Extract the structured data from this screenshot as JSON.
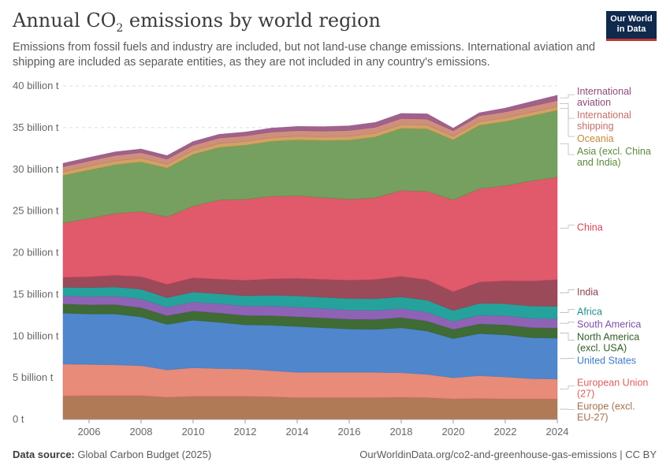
{
  "header": {
    "title_main": "Annual CO",
    "title_sub": "2",
    "title_rest": " emissions by world region",
    "subtitle": "Emissions from fossil fuels and industry are included, but not land-use change emissions. International aviation and shipping are included as separate entities, as they are not included in any country's emissions.",
    "logo_line1": "Our World",
    "logo_line2": "in Data"
  },
  "footer": {
    "source_label": "Data source:",
    "source_text": " Global Carbon Budget (2025)",
    "right_text": "OurWorldinData.org/co2-and-greenhouse-gas-emissions | CC BY"
  },
  "chart_data": {
    "type": "area",
    "stacked": true,
    "x": [
      2005,
      2006,
      2007,
      2008,
      2009,
      2010,
      2011,
      2012,
      2013,
      2014,
      2015,
      2016,
      2017,
      2018,
      2019,
      2020,
      2021,
      2022,
      2023,
      2024
    ],
    "xticks": [
      "2006",
      "2008",
      "2010",
      "2012",
      "2014",
      "2016",
      "2018",
      "2020",
      "2022",
      "2024"
    ],
    "xtick_values": [
      2006,
      2008,
      2010,
      2012,
      2014,
      2016,
      2018,
      2020,
      2022,
      2024
    ],
    "ylim": [
      0,
      40
    ],
    "yticks": [
      "0 t",
      "5 billion t",
      "10 billion t",
      "15 billion t",
      "20 billion t",
      "25 billion t",
      "30 billion t",
      "35 billion t",
      "40 billion t"
    ],
    "ytick_values": [
      0,
      5,
      10,
      15,
      20,
      25,
      30,
      35,
      40
    ],
    "grid": true,
    "legend": "right",
    "series": [
      {
        "name": "Europe (excl. EU-27)",
        "label_lines": [
          "Europe (excl.",
          "EU-27)"
        ],
        "color": "#a2704f",
        "fill": "#b07a57",
        "values": [
          2.8,
          2.85,
          2.85,
          2.85,
          2.65,
          2.75,
          2.75,
          2.75,
          2.7,
          2.6,
          2.6,
          2.6,
          2.6,
          2.65,
          2.6,
          2.45,
          2.5,
          2.45,
          2.45,
          2.45
        ]
      },
      {
        "name": "European Union (27)",
        "label_lines": [
          "European Union",
          "(27)"
        ],
        "color": "#d9605a",
        "fill": "#e88b78",
        "values": [
          3.85,
          3.75,
          3.7,
          3.6,
          3.3,
          3.45,
          3.35,
          3.3,
          3.15,
          3.05,
          3.05,
          3.05,
          3.05,
          2.95,
          2.8,
          2.55,
          2.75,
          2.65,
          2.45,
          2.4
        ]
      },
      {
        "name": "United States",
        "label_lines": [
          "United States"
        ],
        "color": "#3e7ac6",
        "fill": "#4f86cc",
        "values": [
          6.1,
          6.05,
          6.1,
          5.85,
          5.45,
          5.7,
          5.55,
          5.3,
          5.45,
          5.5,
          5.35,
          5.2,
          5.15,
          5.4,
          5.2,
          4.7,
          5.05,
          5.05,
          4.9,
          4.9
        ]
      },
      {
        "name": "North America (excl. USA)",
        "label_lines": [
          "North America",
          "(excl. USA)"
        ],
        "color": "#325d27",
        "fill": "#3f6b35",
        "values": [
          1.1,
          1.1,
          1.12,
          1.1,
          1.05,
          1.1,
          1.12,
          1.12,
          1.15,
          1.17,
          1.18,
          1.17,
          1.2,
          1.22,
          1.2,
          1.1,
          1.15,
          1.2,
          1.22,
          1.22
        ]
      },
      {
        "name": "South America",
        "label_lines": [
          "South America"
        ],
        "color": "#7e4fa8",
        "fill": "#8e63b6",
        "values": [
          0.95,
          0.98,
          1.0,
          1.05,
          1.0,
          1.08,
          1.1,
          1.12,
          1.15,
          1.15,
          1.12,
          1.1,
          1.08,
          1.07,
          1.05,
          0.95,
          1.05,
          1.08,
          1.1,
          1.1
        ]
      },
      {
        "name": "Africa",
        "label_lines": [
          "Africa"
        ],
        "color": "#1f8e8a",
        "fill": "#26a29c",
        "values": [
          1.05,
          1.08,
          1.12,
          1.18,
          1.15,
          1.2,
          1.2,
          1.25,
          1.3,
          1.35,
          1.35,
          1.38,
          1.4,
          1.42,
          1.45,
          1.32,
          1.42,
          1.45,
          1.48,
          1.5
        ]
      },
      {
        "name": "India",
        "label_lines": [
          "India"
        ],
        "color": "#8a3d4c",
        "fill": "#9b4a59",
        "values": [
          1.2,
          1.3,
          1.4,
          1.5,
          1.6,
          1.7,
          1.75,
          1.85,
          1.95,
          2.1,
          2.15,
          2.2,
          2.3,
          2.45,
          2.45,
          2.25,
          2.55,
          2.75,
          3.0,
          3.2
        ]
      },
      {
        "name": "China",
        "label_lines": [
          "China"
        ],
        "color": "#d64358",
        "fill": "#e05a6c",
        "values": [
          6.5,
          7.0,
          7.4,
          7.8,
          8.1,
          8.6,
          9.5,
          9.7,
          9.9,
          9.9,
          9.8,
          9.7,
          9.8,
          10.3,
          10.6,
          11.0,
          11.2,
          11.4,
          12.0,
          12.3
        ]
      },
      {
        "name": "Asia (excl. China and India)",
        "label_lines": [
          "Asia (excl. China",
          "and India)"
        ],
        "color": "#5b8a3a",
        "fill": "#76a05f",
        "values": [
          5.7,
          5.8,
          5.85,
          5.95,
          5.85,
          6.2,
          6.3,
          6.5,
          6.6,
          6.7,
          6.85,
          7.1,
          7.3,
          7.45,
          7.5,
          7.2,
          7.6,
          7.7,
          7.8,
          8.0
        ]
      },
      {
        "name": "Oceania",
        "label_lines": [
          "Oceania"
        ],
        "color": "#c08a36",
        "fill": "#d1a268",
        "values": [
          0.45,
          0.46,
          0.47,
          0.47,
          0.46,
          0.47,
          0.47,
          0.47,
          0.46,
          0.46,
          0.46,
          0.47,
          0.47,
          0.47,
          0.47,
          0.45,
          0.45,
          0.45,
          0.45,
          0.45
        ]
      },
      {
        "name": "International shipping",
        "label_lines": [
          "International",
          "shipping"
        ],
        "color": "#c0716a",
        "fill": "#cf8f7d",
        "values": [
          0.62,
          0.64,
          0.66,
          0.66,
          0.62,
          0.65,
          0.67,
          0.66,
          0.66,
          0.67,
          0.68,
          0.69,
          0.7,
          0.72,
          0.71,
          0.66,
          0.7,
          0.71,
          0.72,
          0.74
        ]
      },
      {
        "name": "International aviation",
        "label_lines": [
          "International",
          "aviation"
        ],
        "color": "#8e4b7a",
        "fill": "#a0628c",
        "values": [
          0.4,
          0.41,
          0.42,
          0.42,
          0.41,
          0.43,
          0.44,
          0.45,
          0.47,
          0.49,
          0.52,
          0.55,
          0.57,
          0.6,
          0.62,
          0.3,
          0.35,
          0.45,
          0.55,
          0.62
        ]
      }
    ]
  }
}
